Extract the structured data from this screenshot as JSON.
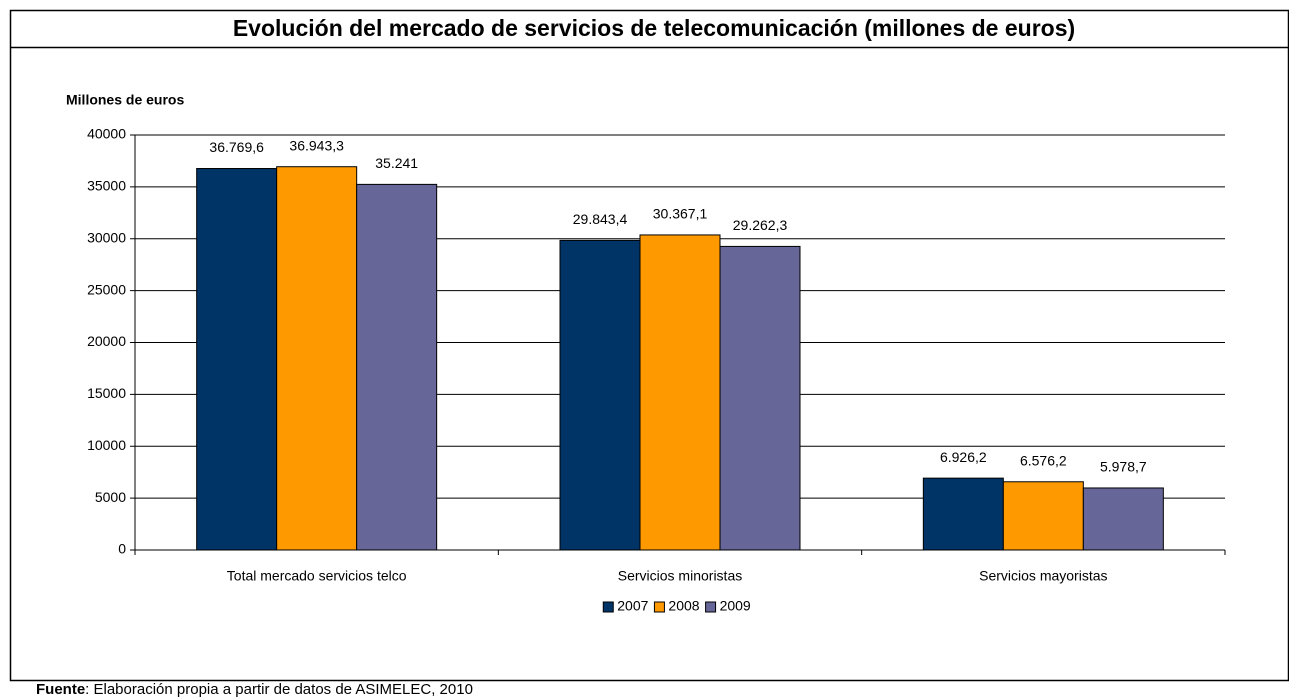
{
  "chart_data": {
    "type": "bar",
    "title": "Evolución del mercado de servicios de telecomunicación (millones de euros)",
    "y_label": "Millones de euros",
    "categories": [
      "Total mercado servicios telco",
      "Servicios minoristas",
      "Servicios mayoristas"
    ],
    "series": [
      {
        "name": "2007",
        "color": "#003366",
        "values": [
          36769.6,
          29843.4,
          6926.2
        ],
        "value_labels": [
          "36.769,6",
          "29.843,4",
          "6.926,2"
        ]
      },
      {
        "name": "2008",
        "color": "#ff9900",
        "values": [
          36943.3,
          30367.1,
          6576.2
        ],
        "value_labels": [
          "36.943,3",
          "30.367,1",
          "6.576,2"
        ]
      },
      {
        "name": "2009",
        "color": "#666699",
        "values": [
          35241,
          29262.3,
          5978.7
        ],
        "value_labels": [
          "35.241",
          "29.262,3",
          "5.978,7"
        ]
      }
    ],
    "ylim": [
      0,
      40000
    ],
    "yticks": [
      0,
      5000,
      10000,
      15000,
      20000,
      25000,
      30000,
      35000,
      40000
    ],
    "grid": true,
    "legend": "bottom",
    "source_label": "Fuente",
    "source_text": ": Elaboración propia a partir de datos de ASIMELEC, 2010"
  }
}
